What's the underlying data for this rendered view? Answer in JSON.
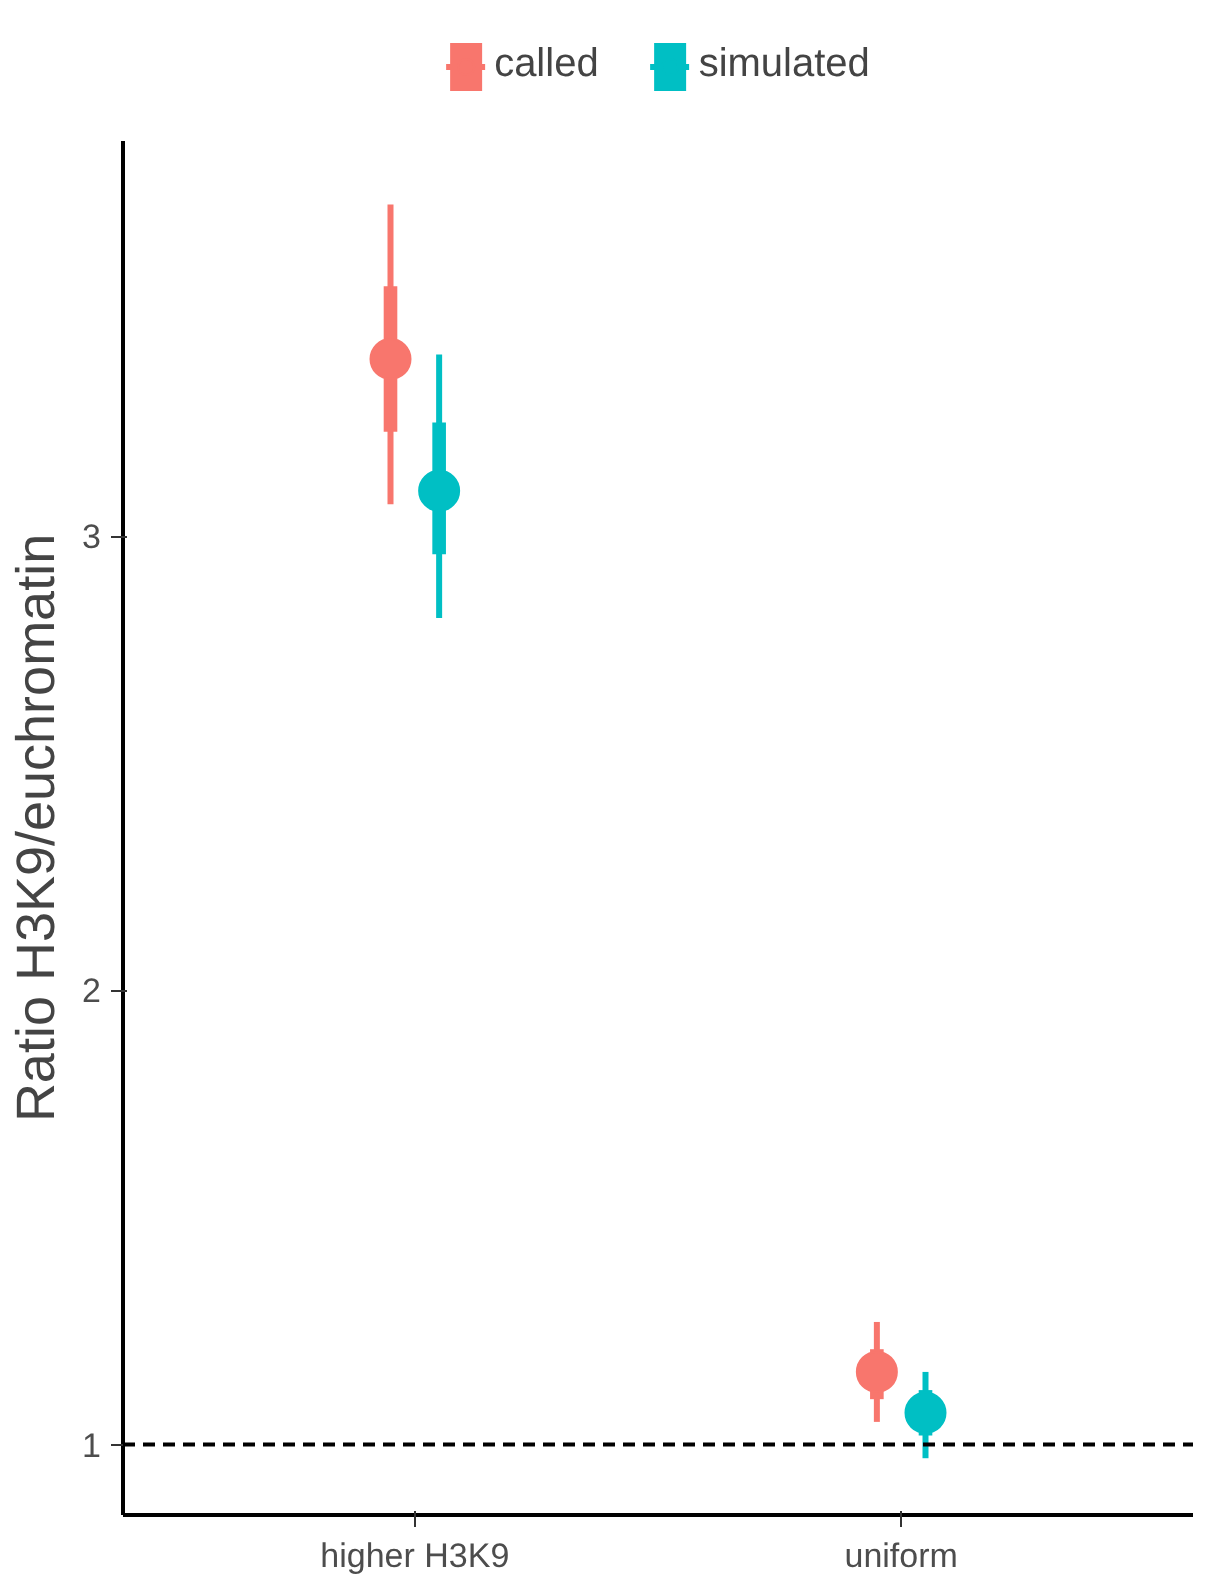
{
  "chart_data": {
    "type": "box",
    "ylabel": "Ratio H3K9/euchromatin",
    "categories": [
      "higher H3K9",
      "uniform"
    ],
    "series": [
      {
        "name": "called",
        "color": "#f8766d",
        "boxes": [
          {
            "low": 3.07,
            "q1": 3.23,
            "median": 3.39,
            "q3": 3.55,
            "high": 3.73
          },
          {
            "low": 1.05,
            "q1": 1.1,
            "median": 1.16,
            "q3": 1.21,
            "high": 1.27
          }
        ]
      },
      {
        "name": "simulated",
        "color": "#00bfc4",
        "boxes": [
          {
            "low": 2.82,
            "q1": 2.96,
            "median": 3.1,
            "q3": 3.25,
            "high": 3.4
          },
          {
            "low": 0.97,
            "q1": 1.02,
            "median": 1.07,
            "q3": 1.12,
            "high": 1.16
          }
        ]
      }
    ],
    "ylim": [
      0.845,
      3.87
    ],
    "yticks": [
      1,
      2,
      3
    ],
    "ref_lines": [
      {
        "axis": "y",
        "value": 1,
        "color": "#000000",
        "line_style": "dashed"
      }
    ],
    "grid": false,
    "legend": "top",
    "marker": "circle"
  }
}
